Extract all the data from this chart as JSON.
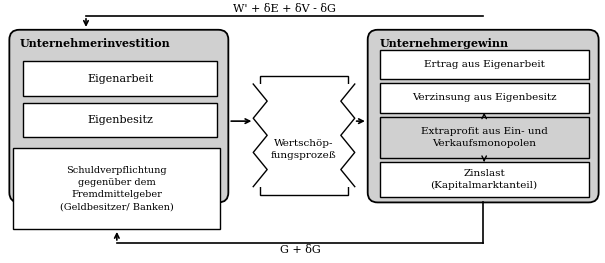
{
  "white": "#ffffff",
  "light_gray": "#d0d0d0",
  "black": "#000000",
  "top_label": "W' + δE + δV - δG",
  "bot_label": "G + δG",
  "font_family": "DejaVu Serif",
  "left_title": "Unternehmerinvestition",
  "right_title": "Unternehmergewinn",
  "sub_eigenarbeit": "Eigenarbeit",
  "sub_eigenbesitz": "Eigenbesitz",
  "debt_label": "Schuldverpflichtung\ngegenüber dem\nFremdmittelgeber\n(Geldbesitzer/ Banken)",
  "mid_label": "Wertschöp-\nfungsprozeß",
  "r1": "Ertrag aus Eigenarbeit",
  "r2": "Verzinsung aus Eigenbesitz",
  "r3": "Extraprofit aus Ein- und\nVerkaufsmonopolen",
  "r4": "Zinslast\n(Kapitalmarktanteil)"
}
